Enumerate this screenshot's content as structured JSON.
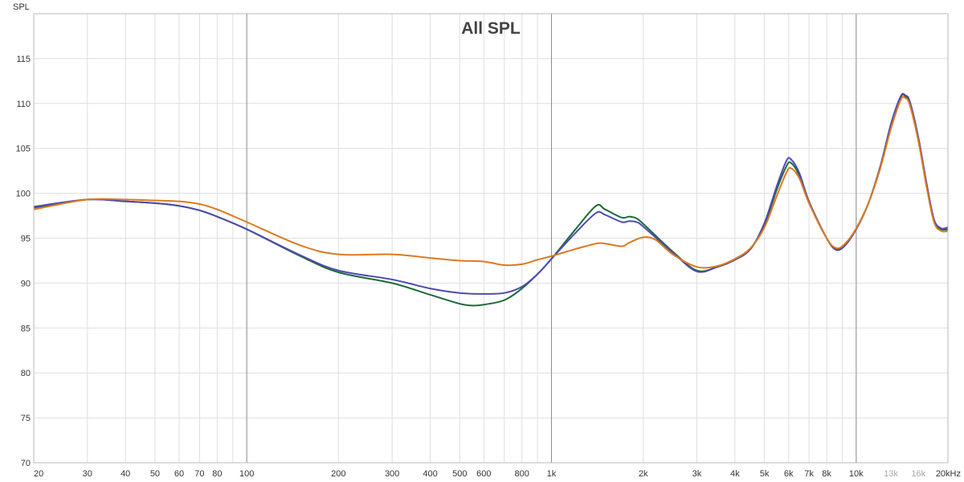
{
  "chart_data": {
    "type": "line",
    "title": "All SPL",
    "ylabel": "SPL",
    "xlabel": "",
    "x_scale": "log",
    "xlim": [
      20,
      20000
    ],
    "ylim": [
      70,
      120
    ],
    "grid": true,
    "legend": "none",
    "y_ticks": [
      {
        "value": 70,
        "label": "70"
      },
      {
        "value": 75,
        "label": "75"
      },
      {
        "value": 80,
        "label": "80"
      },
      {
        "value": 85,
        "label": "85"
      },
      {
        "value": 90,
        "label": "90"
      },
      {
        "value": 95,
        "label": "95"
      },
      {
        "value": 100,
        "label": "100"
      },
      {
        "value": 105,
        "label": "105"
      },
      {
        "value": 110,
        "label": "110"
      },
      {
        "value": 115,
        "label": "115"
      }
    ],
    "x_ticks": [
      {
        "value": 20,
        "label": "20"
      },
      {
        "value": 30,
        "label": "30"
      },
      {
        "value": 40,
        "label": "40"
      },
      {
        "value": 50,
        "label": "50"
      },
      {
        "value": 60,
        "label": "60"
      },
      {
        "value": 70,
        "label": "70"
      },
      {
        "value": 80,
        "label": "80"
      },
      {
        "value": 100,
        "label": "100"
      },
      {
        "value": 200,
        "label": "200"
      },
      {
        "value": 300,
        "label": "300"
      },
      {
        "value": 400,
        "label": "400"
      },
      {
        "value": 500,
        "label": "500"
      },
      {
        "value": 600,
        "label": "600"
      },
      {
        "value": 800,
        "label": "800"
      },
      {
        "value": 1000,
        "label": "1k"
      },
      {
        "value": 2000,
        "label": "2k"
      },
      {
        "value": 3000,
        "label": "3k"
      },
      {
        "value": 4000,
        "label": "4k"
      },
      {
        "value": 5000,
        "label": "5k"
      },
      {
        "value": 6000,
        "label": "6k"
      },
      {
        "value": 7000,
        "label": "7k"
      },
      {
        "value": 8000,
        "label": "8k"
      },
      {
        "value": 10000,
        "label": "10k"
      },
      {
        "value": 13000,
        "label": "13k",
        "faded": true
      },
      {
        "value": 16000,
        "label": "16k",
        "faded": true
      },
      {
        "value": 20000,
        "label": "20kHz"
      }
    ],
    "major_gridlines": [
      100,
      1000,
      10000
    ],
    "series": [
      {
        "color": "#1e6b3a",
        "points": [
          [
            20,
            98.4
          ],
          [
            30,
            99.3
          ],
          [
            40,
            99.1
          ],
          [
            50,
            98.9
          ],
          [
            60,
            98.6
          ],
          [
            70,
            98.1
          ],
          [
            80,
            97.4
          ],
          [
            100,
            96.0
          ],
          [
            150,
            93.0
          ],
          [
            200,
            91.2
          ],
          [
            300,
            90.0
          ],
          [
            400,
            88.7
          ],
          [
            500,
            87.7
          ],
          [
            550,
            87.5
          ],
          [
            600,
            87.6
          ],
          [
            700,
            88.1
          ],
          [
            800,
            89.4
          ],
          [
            900,
            91.0
          ],
          [
            1000,
            92.7
          ],
          [
            1200,
            96.0
          ],
          [
            1400,
            98.6
          ],
          [
            1500,
            98.2
          ],
          [
            1700,
            97.3
          ],
          [
            1800,
            97.4
          ],
          [
            1900,
            97.2
          ],
          [
            2000,
            96.6
          ],
          [
            2500,
            93.5
          ],
          [
            3000,
            91.4
          ],
          [
            3500,
            91.8
          ],
          [
            4000,
            92.6
          ],
          [
            4500,
            93.8
          ],
          [
            5000,
            96.5
          ],
          [
            5500,
            100.5
          ],
          [
            5900,
            103.0
          ],
          [
            6100,
            103.4
          ],
          [
            6500,
            102.0
          ],
          [
            7000,
            99.0
          ],
          [
            8000,
            95.0
          ],
          [
            8600,
            93.8
          ],
          [
            9200,
            94.3
          ],
          [
            10000,
            96.0
          ],
          [
            11000,
            99.0
          ],
          [
            12000,
            103.0
          ],
          [
            13000,
            107.5
          ],
          [
            14000,
            110.7
          ],
          [
            14500,
            110.8
          ],
          [
            15000,
            110.0
          ],
          [
            16000,
            106.0
          ],
          [
            17000,
            101.0
          ],
          [
            18000,
            97.0
          ],
          [
            19000,
            96.0
          ],
          [
            20000,
            96.0
          ]
        ]
      },
      {
        "color": "#4e4ab0",
        "points": [
          [
            20,
            98.5
          ],
          [
            30,
            99.3
          ],
          [
            40,
            99.1
          ],
          [
            50,
            98.9
          ],
          [
            60,
            98.6
          ],
          [
            70,
            98.1
          ],
          [
            80,
            97.4
          ],
          [
            100,
            96.0
          ],
          [
            150,
            93.1
          ],
          [
            200,
            91.4
          ],
          [
            300,
            90.4
          ],
          [
            400,
            89.4
          ],
          [
            500,
            88.9
          ],
          [
            600,
            88.8
          ],
          [
            700,
            88.9
          ],
          [
            800,
            89.6
          ],
          [
            900,
            91.0
          ],
          [
            1000,
            92.7
          ],
          [
            1200,
            95.6
          ],
          [
            1400,
            97.8
          ],
          [
            1500,
            97.6
          ],
          [
            1700,
            96.8
          ],
          [
            1800,
            96.9
          ],
          [
            1900,
            96.8
          ],
          [
            2000,
            96.3
          ],
          [
            2500,
            93.4
          ],
          [
            3000,
            91.3
          ],
          [
            3500,
            91.8
          ],
          [
            4000,
            92.6
          ],
          [
            4500,
            93.8
          ],
          [
            5000,
            96.7
          ],
          [
            5500,
            100.9
          ],
          [
            5900,
            103.6
          ],
          [
            6100,
            103.8
          ],
          [
            6500,
            102.3
          ],
          [
            7000,
            99.1
          ],
          [
            8000,
            95.0
          ],
          [
            8600,
            93.7
          ],
          [
            9200,
            94.2
          ],
          [
            10000,
            96.0
          ],
          [
            11000,
            99.0
          ],
          [
            12000,
            103.0
          ],
          [
            13000,
            107.7
          ],
          [
            14000,
            110.8
          ],
          [
            14500,
            110.9
          ],
          [
            15000,
            110.2
          ],
          [
            16000,
            106.2
          ],
          [
            17000,
            101.2
          ],
          [
            18000,
            97.1
          ],
          [
            19000,
            96.1
          ],
          [
            20000,
            96.2
          ]
        ]
      },
      {
        "color": "#dc7a1e",
        "points": [
          [
            20,
            98.2
          ],
          [
            30,
            99.3
          ],
          [
            40,
            99.3
          ],
          [
            50,
            99.2
          ],
          [
            60,
            99.1
          ],
          [
            70,
            98.8
          ],
          [
            80,
            98.2
          ],
          [
            100,
            96.8
          ],
          [
            150,
            94.2
          ],
          [
            200,
            93.2
          ],
          [
            300,
            93.2
          ],
          [
            400,
            92.8
          ],
          [
            500,
            92.5
          ],
          [
            600,
            92.4
          ],
          [
            700,
            92.0
          ],
          [
            800,
            92.1
          ],
          [
            900,
            92.6
          ],
          [
            1000,
            93.0
          ],
          [
            1200,
            93.8
          ],
          [
            1400,
            94.4
          ],
          [
            1500,
            94.4
          ],
          [
            1700,
            94.1
          ],
          [
            1800,
            94.5
          ],
          [
            2000,
            95.1
          ],
          [
            2200,
            94.8
          ],
          [
            2500,
            93.2
          ],
          [
            3000,
            91.8
          ],
          [
            3500,
            91.9
          ],
          [
            4000,
            92.7
          ],
          [
            4500,
            93.9
          ],
          [
            5000,
            96.2
          ],
          [
            5500,
            99.8
          ],
          [
            5900,
            102.3
          ],
          [
            6100,
            102.8
          ],
          [
            6500,
            101.7
          ],
          [
            7000,
            98.9
          ],
          [
            8000,
            95.0
          ],
          [
            8600,
            93.9
          ],
          [
            9200,
            94.4
          ],
          [
            10000,
            96.1
          ],
          [
            11000,
            99.0
          ],
          [
            12000,
            102.8
          ],
          [
            13000,
            107.2
          ],
          [
            14000,
            110.4
          ],
          [
            14500,
            110.6
          ],
          [
            15000,
            109.8
          ],
          [
            16000,
            105.8
          ],
          [
            17000,
            100.8
          ],
          [
            18000,
            96.8
          ],
          [
            19000,
            95.8
          ],
          [
            20000,
            95.8
          ]
        ]
      }
    ]
  }
}
